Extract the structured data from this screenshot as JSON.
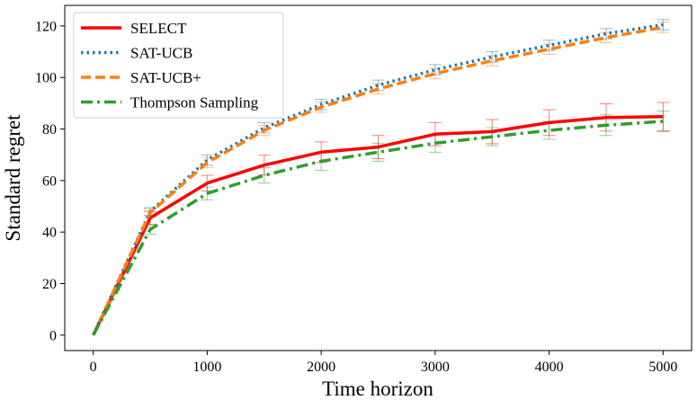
{
  "chart_data": {
    "type": "line",
    "title": "",
    "xlabel": "Time horizon",
    "ylabel": "Standard regret",
    "xlim": [
      -250,
      5250
    ],
    "ylim": [
      -6,
      128
    ],
    "x": [
      0,
      500,
      1000,
      1500,
      2000,
      2500,
      3000,
      3500,
      4000,
      4500,
      5000
    ],
    "x_ticks": [
      0,
      1000,
      2000,
      3000,
      4000,
      5000
    ],
    "y_ticks": [
      0,
      20,
      40,
      60,
      80,
      100,
      120
    ],
    "grid": false,
    "legend_position": "top-left",
    "series": [
      {
        "name": "SELECT",
        "color": "#ff0000",
        "style": "solid",
        "values": [
          0,
          45.5,
          59,
          66,
          71,
          73,
          78,
          79,
          82.5,
          84.5,
          84.8
        ],
        "errors": [
          0,
          2.5,
          3,
          3.8,
          4,
          4.5,
          4.5,
          4.7,
          5,
          5.3,
          5.5
        ]
      },
      {
        "name": "SAT-UCB",
        "color": "#1f77b4",
        "style": "dotted",
        "values": [
          0,
          48,
          68,
          80.5,
          89.5,
          97,
          103,
          108,
          112.5,
          117,
          120.5
        ],
        "errors": [
          0,
          1.5,
          2,
          2,
          2,
          2,
          2,
          2,
          2,
          2,
          2
        ]
      },
      {
        "name": "SAT-UCB+",
        "color": "#ff7f0e",
        "style": "dashed",
        "values": [
          0,
          47.5,
          67,
          79.5,
          88.5,
          95.5,
          101.5,
          106.5,
          111,
          115.5,
          119.5
        ],
        "errors": [
          0,
          1.5,
          2,
          2,
          2,
          2,
          2,
          2,
          2,
          2,
          2
        ]
      },
      {
        "name": "Thompson Sampling",
        "color": "#2ca02c",
        "style": "dashdot",
        "values": [
          0,
          41,
          55,
          62,
          67.5,
          71,
          74.5,
          77,
          79.5,
          81.5,
          83
        ],
        "errors": [
          0,
          1.8,
          2.5,
          3,
          3.5,
          3.5,
          3.5,
          3.5,
          3.5,
          4,
          4
        ]
      }
    ]
  }
}
